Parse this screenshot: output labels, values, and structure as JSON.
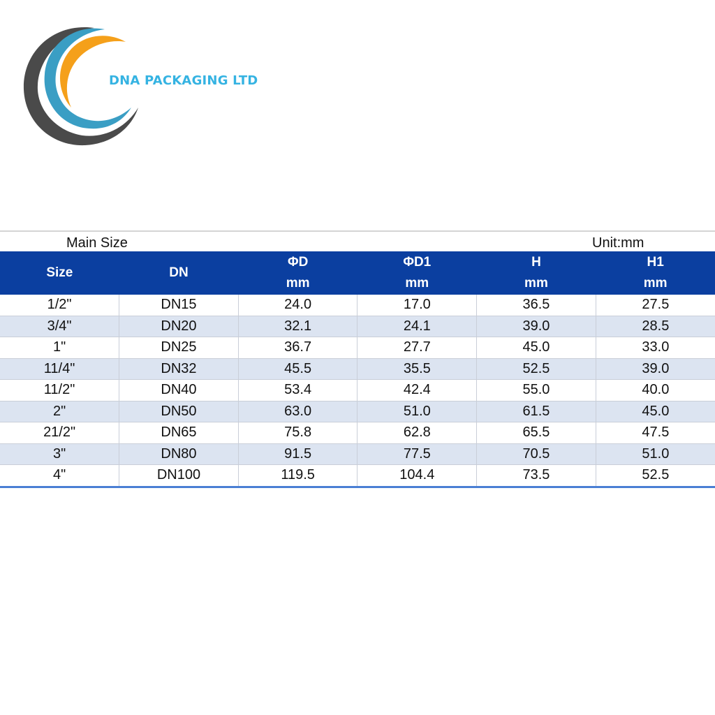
{
  "brand": {
    "name": "DNA PACKAGING LTD",
    "colors": {
      "text": "#35b3e2",
      "ring_dark": "#4a4a4a",
      "ring_blue": "#3a9ec4",
      "ring_orange": "#f5a01a"
    }
  },
  "table": {
    "caption_left": "Main Size",
    "caption_right": "Unit:mm",
    "header_color": "#0b3fa0",
    "columns": [
      {
        "label": "Size",
        "unit": ""
      },
      {
        "label": "DN",
        "unit": ""
      },
      {
        "label": "ΦD",
        "unit": "mm"
      },
      {
        "label": "ΦD1",
        "unit": "mm"
      },
      {
        "label": "H",
        "unit": "mm"
      },
      {
        "label": "H1",
        "unit": "mm"
      }
    ],
    "rows": [
      [
        "1/2\"",
        "DN15",
        "24.0",
        "17.0",
        "36.5",
        "27.5"
      ],
      [
        "3/4\"",
        "DN20",
        "32.1",
        "24.1",
        "39.0",
        "28.5"
      ],
      [
        "1\"",
        "DN25",
        "36.7",
        "27.7",
        "45.0",
        "33.0"
      ],
      [
        "11/4\"",
        "DN32",
        "45.5",
        "35.5",
        "52.5",
        "39.0"
      ],
      [
        "11/2\"",
        "DN40",
        "53.4",
        "42.4",
        "55.0",
        "40.0"
      ],
      [
        "2\"",
        "DN50",
        "63.0",
        "51.0",
        "61.5",
        "45.0"
      ],
      [
        "21/2\"",
        "DN65",
        "75.8",
        "62.8",
        "65.5",
        "47.5"
      ],
      [
        "3\"",
        "DN80",
        "91.5",
        "77.5",
        "70.5",
        "51.0"
      ],
      [
        "4\"",
        "DN100",
        "119.5",
        "104.4",
        "73.5",
        "52.5"
      ]
    ]
  }
}
